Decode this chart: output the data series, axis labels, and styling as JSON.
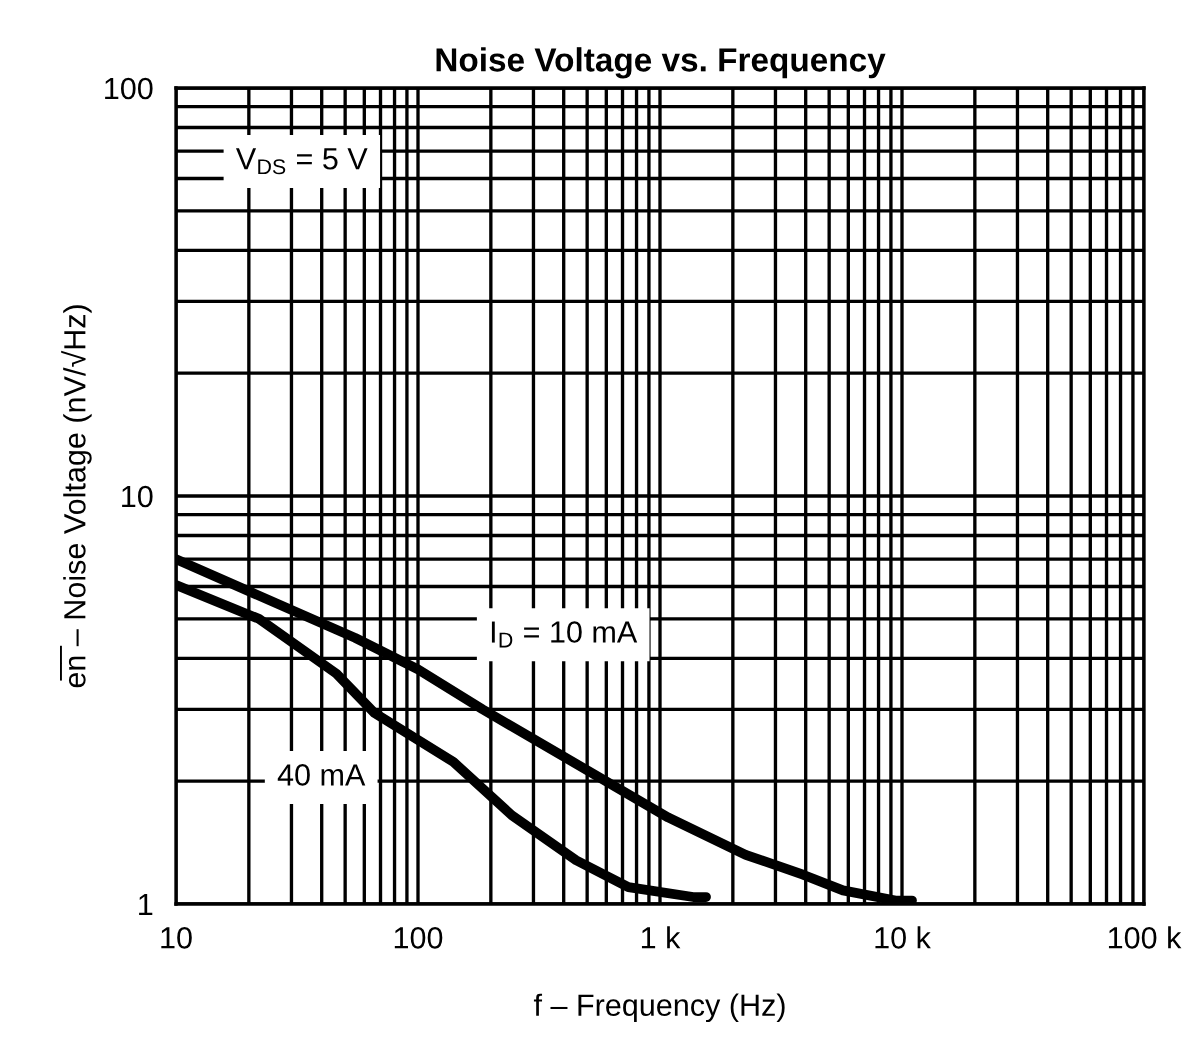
{
  "chart_data": {
    "type": "line",
    "title": "Noise Voltage vs. Frequency",
    "xlabel": "f – Frequency (Hz)",
    "ylabel": "e̅n̅ – Noise Voltage (nV/√Hz)",
    "log": "xy",
    "grid": true,
    "legend": false,
    "marker": "none",
    "line_style": "solid",
    "xlim": [
      10,
      100000
    ],
    "xticks": [
      10,
      100,
      {
        "value": 1000,
        "label": "1 k"
      },
      {
        "value": 10000,
        "label": "10 k"
      },
      {
        "value": 100000,
        "label": "100 k"
      }
    ],
    "ylim": [
      1,
      100
    ],
    "yticks": [
      1,
      10,
      100
    ],
    "series": [
      {
        "color": "#000000",
        "x": [
          10,
          55,
          100,
          185,
          1080,
          2260,
          3900,
          5700,
          9400,
          11000
        ],
        "values": [
          7.0,
          4.49,
          3.76,
          3.0,
          1.63,
          1.32,
          1.18,
          1.08,
          1.02,
          1.02
        ]
      },
      {
        "color": "#000000",
        "x": [
          10,
          22,
          46,
          66,
          140,
          244,
          450,
          740,
          1370,
          1550
        ],
        "values": [
          6.05,
          5.0,
          3.67,
          2.94,
          2.23,
          1.65,
          1.28,
          1.1,
          1.04,
          1.04
        ]
      }
    ],
    "annotations": [
      "V$_{DS}$ = 5 V",
      "I$_{D}$ = 10 mA",
      "40 mA"
    ]
  }
}
